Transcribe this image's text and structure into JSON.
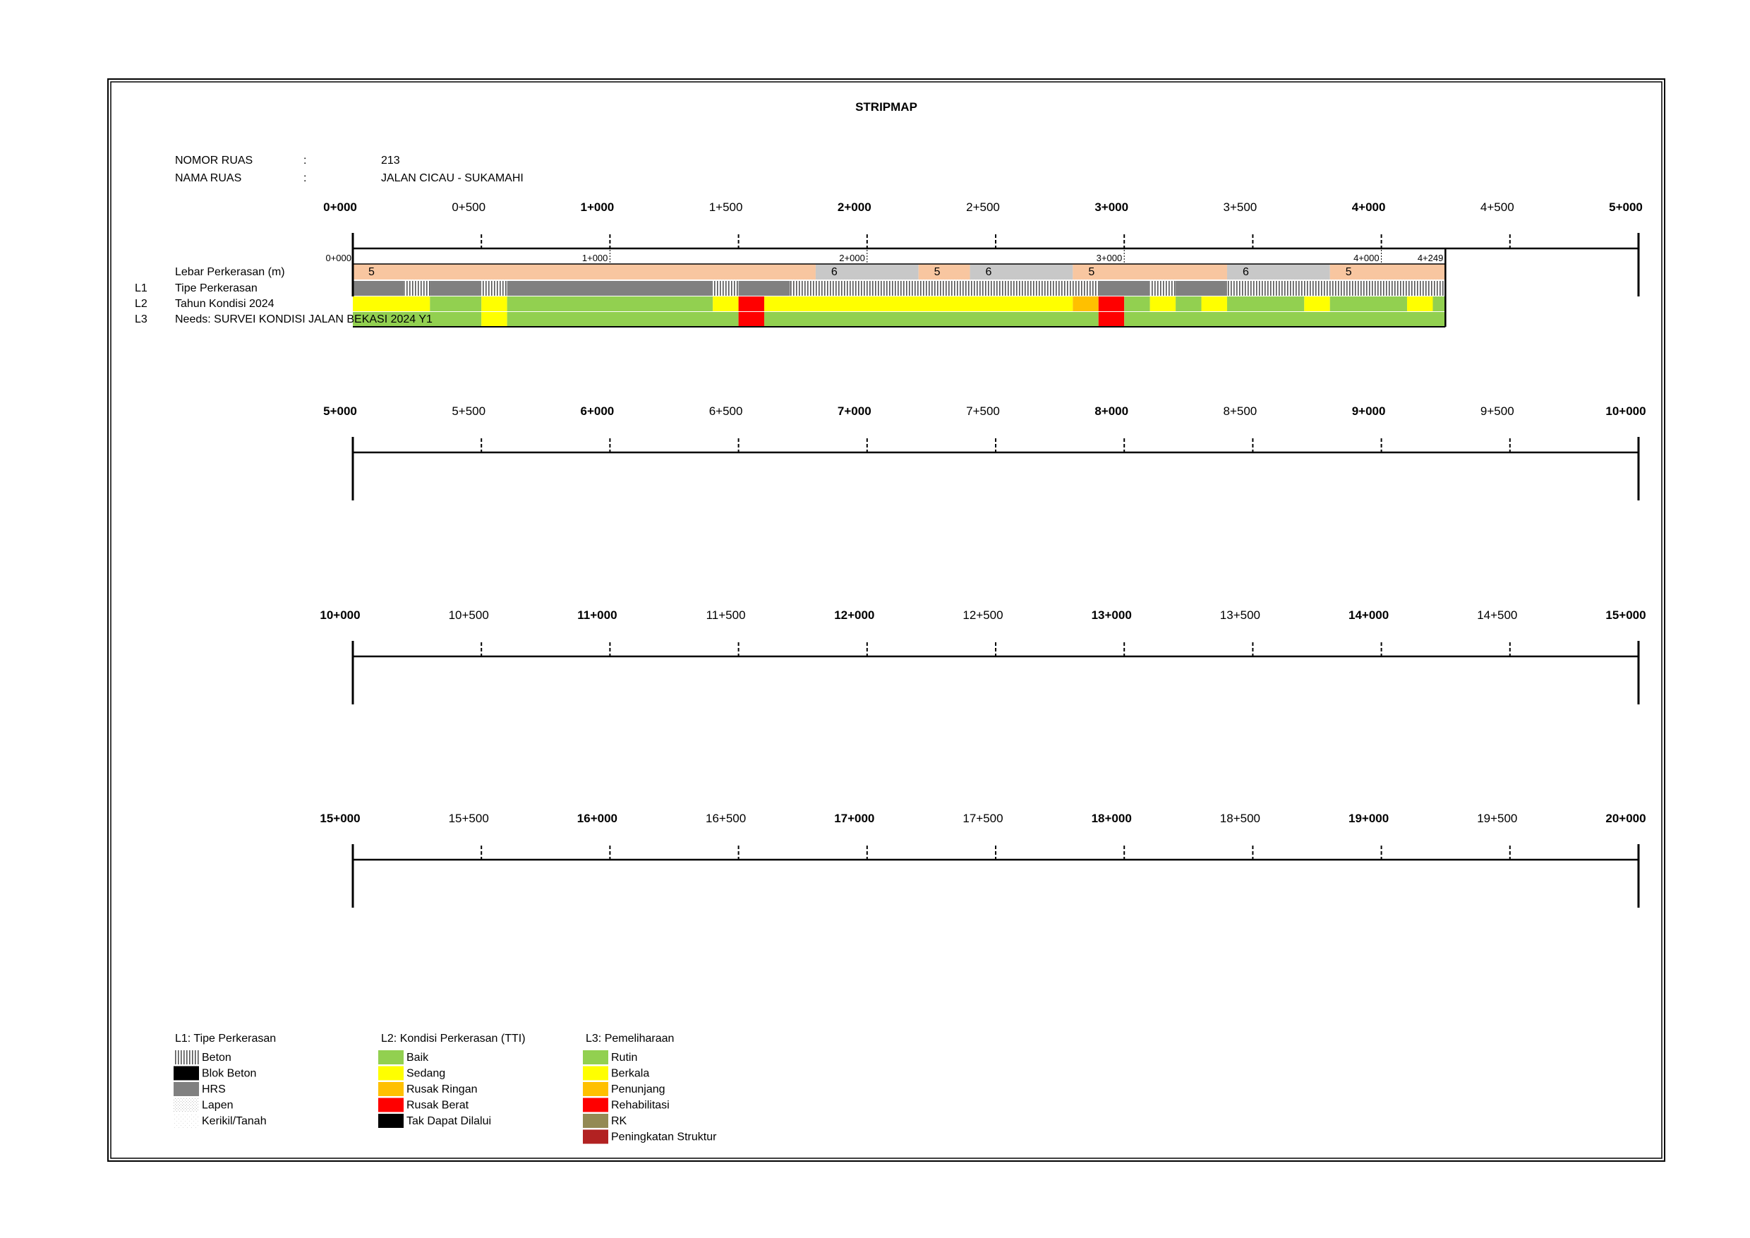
{
  "title": "STRIPMAP",
  "info": {
    "nomor_label": "NOMOR RUAS",
    "nomor_sep": ":",
    "nomor_value": "213",
    "nama_label": "NAMA RUAS",
    "nama_sep": ":",
    "nama_value": "JALAN CICAU - SUKAMAHI"
  },
  "row_labels": {
    "lebar": "Lebar Perkerasan (m)",
    "l1_code": "L1",
    "l1": "Tipe Perkerasan",
    "l2_code": "L2",
    "l2": "Tahun Kondisi 2024",
    "l3_code": "L3",
    "l3": "Needs: SURVEI KONDISI JALAN BEKASI 2024 Y1"
  },
  "scale_rows": [
    {
      "ticks": [
        "0+000",
        "0+500",
        "1+000",
        "1+500",
        "2+000",
        "2+500",
        "3+000",
        "3+500",
        "4+000",
        "4+500",
        "5+000"
      ]
    },
    {
      "ticks": [
        "5+000",
        "5+500",
        "6+000",
        "6+500",
        "7+000",
        "7+500",
        "8+000",
        "8+500",
        "9+000",
        "9+500",
        "10+000"
      ]
    },
    {
      "ticks": [
        "10+000",
        "10+500",
        "11+000",
        "11+500",
        "12+000",
        "12+500",
        "13+000",
        "13+500",
        "14+000",
        "14+500",
        "15+000"
      ]
    },
    {
      "ticks": [
        "15+000",
        "15+500",
        "16+000",
        "16+500",
        "17+000",
        "17+500",
        "18+000",
        "18+500",
        "19+000",
        "19+500",
        "20+000"
      ]
    }
  ],
  "road_km_labels": [
    "0+000",
    "1+000",
    "2+000",
    "3+000",
    "4+000",
    "4+249"
  ],
  "road_length_km": 4.249,
  "width_segments": [
    {
      "from": 0.0,
      "to": 1.8,
      "value": "5",
      "color": "#F8C6A0"
    },
    {
      "from": 1.8,
      "to": 2.2,
      "value": "6",
      "color": "#C8C8C8"
    },
    {
      "from": 2.2,
      "to": 2.4,
      "value": "5",
      "color": "#F8C6A0"
    },
    {
      "from": 2.4,
      "to": 2.8,
      "value": "6",
      "color": "#C8C8C8"
    },
    {
      "from": 2.8,
      "to": 3.4,
      "value": "5",
      "color": "#F8C6A0"
    },
    {
      "from": 3.4,
      "to": 3.8,
      "value": "6",
      "color": "#C8C8C8"
    },
    {
      "from": 3.8,
      "to": 4.249,
      "value": "5",
      "color": "#F8C6A0"
    }
  ],
  "l1_segments": [
    {
      "from": 0.0,
      "to": 0.2,
      "type": "HRS"
    },
    {
      "from": 0.2,
      "to": 0.3,
      "type": "Beton"
    },
    {
      "from": 0.3,
      "to": 0.5,
      "type": "HRS"
    },
    {
      "from": 0.5,
      "to": 0.6,
      "type": "Beton"
    },
    {
      "from": 0.6,
      "to": 1.4,
      "type": "HRS"
    },
    {
      "from": 1.4,
      "to": 1.5,
      "type": "Beton"
    },
    {
      "from": 1.5,
      "to": 1.7,
      "type": "HRS"
    },
    {
      "from": 1.7,
      "to": 2.9,
      "type": "Beton"
    },
    {
      "from": 2.9,
      "to": 3.1,
      "type": "HRS"
    },
    {
      "from": 3.1,
      "to": 3.2,
      "type": "Beton"
    },
    {
      "from": 3.2,
      "to": 3.4,
      "type": "HRS"
    },
    {
      "from": 3.4,
      "to": 4.249,
      "type": "Beton"
    }
  ],
  "l2_segments": [
    {
      "from": 0.0,
      "to": 0.3,
      "cond": "Sedang"
    },
    {
      "from": 0.3,
      "to": 0.5,
      "cond": "Baik"
    },
    {
      "from": 0.5,
      "to": 0.6,
      "cond": "Sedang"
    },
    {
      "from": 0.6,
      "to": 1.4,
      "cond": "Baik"
    },
    {
      "from": 1.4,
      "to": 1.5,
      "cond": "Sedang"
    },
    {
      "from": 1.5,
      "to": 1.6,
      "cond": "Rusak Berat"
    },
    {
      "from": 1.6,
      "to": 2.8,
      "cond": "Sedang"
    },
    {
      "from": 2.8,
      "to": 2.9,
      "cond": "Rusak Ringan"
    },
    {
      "from": 2.9,
      "to": 3.0,
      "cond": "Rusak Berat"
    },
    {
      "from": 3.0,
      "to": 3.1,
      "cond": "Baik"
    },
    {
      "from": 3.1,
      "to": 3.2,
      "cond": "Sedang"
    },
    {
      "from": 3.2,
      "to": 3.3,
      "cond": "Baik"
    },
    {
      "from": 3.3,
      "to": 3.4,
      "cond": "Sedang"
    },
    {
      "from": 3.4,
      "to": 3.7,
      "cond": "Baik"
    },
    {
      "from": 3.7,
      "to": 3.8,
      "cond": "Sedang"
    },
    {
      "from": 3.8,
      "to": 4.1,
      "cond": "Baik"
    },
    {
      "from": 4.1,
      "to": 4.2,
      "cond": "Sedang"
    },
    {
      "from": 4.2,
      "to": 4.249,
      "cond": "Baik"
    }
  ],
  "l3_segments": [
    {
      "from": 0.0,
      "to": 0.5,
      "need": "Rutin"
    },
    {
      "from": 0.5,
      "to": 0.6,
      "need": "Berkala"
    },
    {
      "from": 0.6,
      "to": 1.5,
      "need": "Rutin"
    },
    {
      "from": 1.5,
      "to": 1.6,
      "need": "Rehabilitasi"
    },
    {
      "from": 1.6,
      "to": 2.9,
      "need": "Rutin"
    },
    {
      "from": 2.9,
      "to": 3.0,
      "need": "Rehabilitasi"
    },
    {
      "from": 3.0,
      "to": 4.249,
      "need": "Rutin"
    }
  ],
  "legend": {
    "l1": {
      "title": "L1: Tipe Perkerasan",
      "items": [
        {
          "label": "Beton",
          "pattern": "Beton"
        },
        {
          "label": "Blok Beton",
          "pattern": "Blok Beton"
        },
        {
          "label": "HRS",
          "pattern": "HRS"
        },
        {
          "label": "Lapen",
          "pattern": "Lapen"
        },
        {
          "label": "Kerikil/Tanah",
          "pattern": "Kerikil/Tanah"
        }
      ]
    },
    "l2": {
      "title": "L2: Kondisi Perkerasan (TTI)",
      "items": [
        {
          "label": "Baik",
          "color": "#92D050"
        },
        {
          "label": "Sedang",
          "color": "#FFFF00"
        },
        {
          "label": "Rusak Ringan",
          "color": "#FFC000"
        },
        {
          "label": "Rusak Berat",
          "color": "#FF0000"
        },
        {
          "label": "Tak Dapat Dilalui",
          "color": "#000000"
        }
      ]
    },
    "l3": {
      "title": "L3: Pemeliharaan",
      "items": [
        {
          "label": "Rutin",
          "color": "#92D050"
        },
        {
          "label": "Berkala",
          "color": "#FFFF00"
        },
        {
          "label": "Penunjang",
          "color": "#FFC000"
        },
        {
          "label": "Rehabilitasi",
          "color": "#FF0000"
        },
        {
          "label": "RK",
          "color": "#948A54"
        },
        {
          "label": "Peningkatan Struktur",
          "color": "#B22222"
        }
      ]
    }
  },
  "colors": {
    "Baik": "#92D050",
    "Sedang": "#FFFF00",
    "Rusak Ringan": "#FFC000",
    "Rusak Berat": "#FF0000",
    "Tak Dapat Dilalui": "#000000",
    "Rutin": "#92D050",
    "Berkala": "#FFFF00",
    "Penunjang": "#FFC000",
    "Rehabilitasi": "#FF0000",
    "RK": "#948A54",
    "Peningkatan Struktur": "#B22222"
  }
}
